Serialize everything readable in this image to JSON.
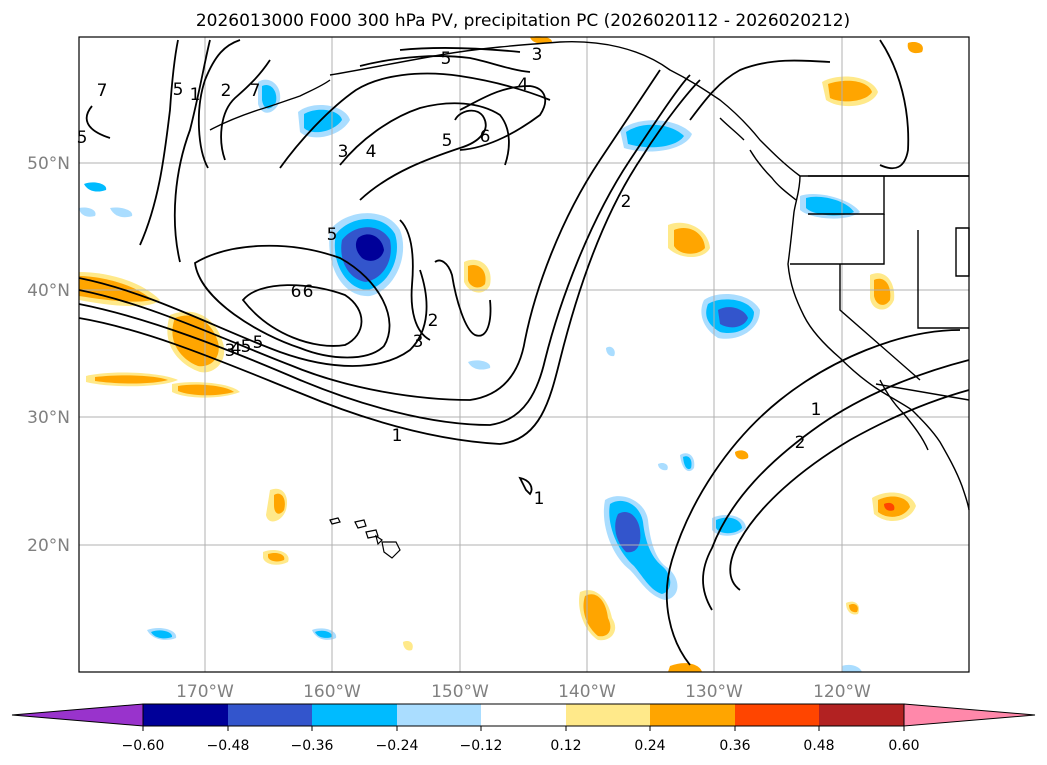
{
  "title": "2026013000 F000 300 hPa PV, precipitation PC (2026020112 - 2026020212)",
  "latitude_labels": [
    "50°N",
    "40°N",
    "30°N",
    "20°N"
  ],
  "longitude_labels": [
    "170°W",
    "160°W",
    "150°W",
    "140°W",
    "130°W",
    "120°W"
  ],
  "colorbar": {
    "ticks": [
      "−0.60",
      "−0.48",
      "−0.36",
      "−0.24",
      "−0.12",
      "0.12",
      "0.24",
      "0.36",
      "0.48",
      "0.60"
    ],
    "colors": [
      "#9933cc",
      "#000099",
      "#3355cc",
      "#00bbff",
      "#aaddff",
      "#ffffff",
      "#ffe98a",
      "#ffa500",
      "#ff4500",
      "#b22222",
      "#ff88aa"
    ]
  },
  "pv_contour_labels": [
    "7",
    "5",
    "1",
    "2",
    "7",
    "5",
    "3",
    "4",
    "5",
    "6",
    "4",
    "3",
    "5",
    "6",
    "5",
    "3",
    "2",
    "6",
    "5",
    "4",
    "3",
    "1",
    "2",
    "1",
    "2",
    "1",
    "5"
  ],
  "colors": {
    "precip_positive": "#ffa500",
    "precip_negative": "#00bbff",
    "contour": "#000000",
    "grid": "#b0b0b0",
    "label_gray": "#808080"
  }
}
